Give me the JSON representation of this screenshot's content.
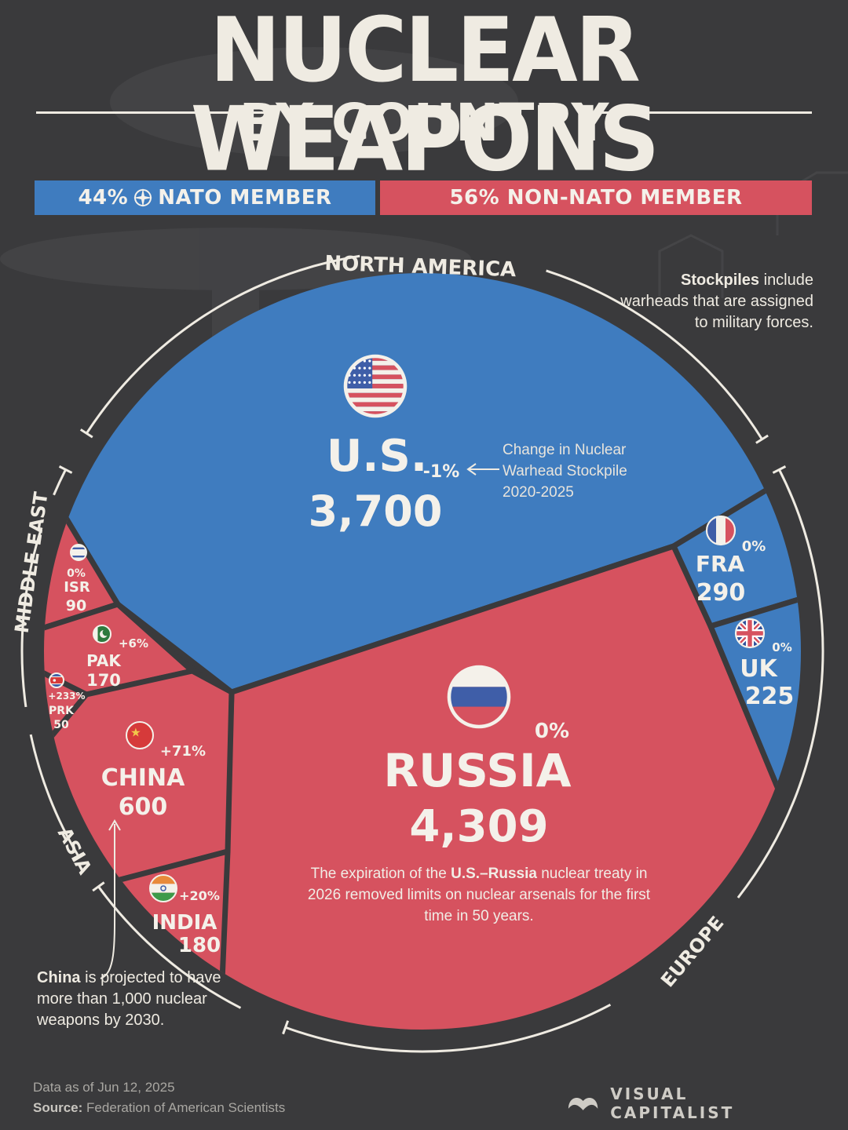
{
  "title": "NUCLEAR WEAPONS",
  "subtitle": "BY COUNTRY",
  "legend": {
    "nato_pct": "44%",
    "nato_label": "NATO MEMBER",
    "non_nato_pct": "56%",
    "non_nato_label": "NON-NATO MEMBER"
  },
  "regions": {
    "north_america": "NORTH AMERICA",
    "middle_east": "MIDDLE EAST",
    "asia": "ASIA",
    "europe": "EUROPE"
  },
  "notes": {
    "stockpiles_bold": "Stockpiles",
    "stockpiles_text": " include warheads that are assigned to military forces.",
    "change_label": "Change in Nuclear Warhead Stockpile 2020-2025",
    "treaty_pre": "The expiration of the ",
    "treaty_bold": "U.S.–Russia",
    "treaty_post": " nuclear treaty in 2026 removed limits on nuclear arsenals for the first time in 50 years.",
    "china_bold": "China",
    "china_text": " is projected to have more than 1,000 nuclear weapons by 2030."
  },
  "footer": {
    "date": "Data as of Jun 12, 2025",
    "source_label": "Source:",
    "source": " Federation of American Scientists",
    "brand": "VISUAL CAPITALIST"
  },
  "colors": {
    "nato": "#3f7cbf",
    "non_nato": "#d6525f",
    "background": "#3a3a3c",
    "text": "#efebe2"
  },
  "chart_data": {
    "type": "voronoi",
    "unit": "nuclear warheads",
    "countries": [
      {
        "name": "U.S.",
        "value": "3,700",
        "stockpile": 3700,
        "change": "-1%",
        "nato": true,
        "region": "North America",
        "flag": "us-flag-icon"
      },
      {
        "name": "RUSSIA",
        "value": "4,309",
        "stockpile": 4309,
        "change": "0%",
        "nato": false,
        "region": "Europe",
        "flag": "russia-flag-icon"
      },
      {
        "name": "FRA",
        "value": "290",
        "stockpile": 290,
        "change": "0%",
        "nato": true,
        "region": "Europe",
        "flag": "france-flag-icon"
      },
      {
        "name": "UK",
        "value": "225",
        "stockpile": 225,
        "change": "0%",
        "nato": true,
        "region": "Europe",
        "flag": "uk-flag-icon"
      },
      {
        "name": "CHINA",
        "value": "600",
        "stockpile": 600,
        "change": "+71%",
        "nato": false,
        "region": "Asia",
        "flag": "china-flag-icon"
      },
      {
        "name": "INDIA",
        "value": "180",
        "stockpile": 180,
        "change": "+20%",
        "nato": false,
        "region": "Asia",
        "flag": "india-flag-icon"
      },
      {
        "name": "PAK",
        "value": "170",
        "stockpile": 170,
        "change": "+6%",
        "nato": false,
        "region": "Asia",
        "flag": "pakistan-flag-icon"
      },
      {
        "name": "PRK",
        "value": "50",
        "stockpile": 50,
        "change": "+233%",
        "nato": false,
        "region": "Asia",
        "flag": "north-korea-flag-icon"
      },
      {
        "name": "ISR",
        "value": "90",
        "stockpile": 90,
        "change": "0%",
        "nato": false,
        "region": "Middle East",
        "flag": "israel-flag-icon"
      }
    ]
  }
}
